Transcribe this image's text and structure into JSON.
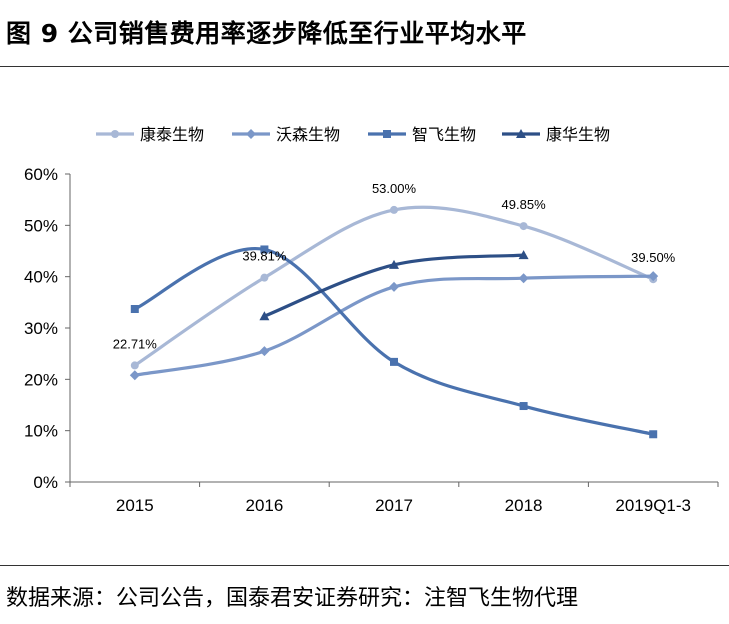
{
  "figure": {
    "title": "图 9 公司销售费用率逐步降低至行业平均水平",
    "source": "数据来源：公司公告，国泰君安证券研究：注智飞生物代理"
  },
  "chart_data": {
    "type": "line",
    "categories": [
      "2015",
      "2016",
      "2017",
      "2018",
      "2019Q1-3"
    ],
    "y_ticks": [
      "0%",
      "10%",
      "20%",
      "30%",
      "40%",
      "50%",
      "60%"
    ],
    "ylim": [
      0,
      60
    ],
    "y_unit": "%",
    "grid": false,
    "legend_position": "top",
    "series": [
      {
        "name": "康泰生物",
        "marker": "circle",
        "color": "#a8b8d6",
        "values": [
          22.71,
          39.81,
          53.0,
          49.85,
          39.5
        ],
        "labels": [
          "22.71%",
          "39.81%",
          "53.00%",
          "49.85%",
          "39.50%"
        ]
      },
      {
        "name": "沃森生物",
        "marker": "diamond",
        "color": "#7b97c8",
        "values": [
          20.8,
          25.5,
          38.0,
          39.7,
          40.1
        ]
      },
      {
        "name": "智飞生物",
        "marker": "square",
        "color": "#4a72ae",
        "values": [
          33.7,
          45.3,
          23.4,
          14.8,
          9.3
        ]
      },
      {
        "name": "康华生物",
        "marker": "triangle",
        "color": "#2d4f86",
        "values": [
          null,
          32.3,
          42.3,
          44.2,
          null
        ]
      }
    ]
  }
}
